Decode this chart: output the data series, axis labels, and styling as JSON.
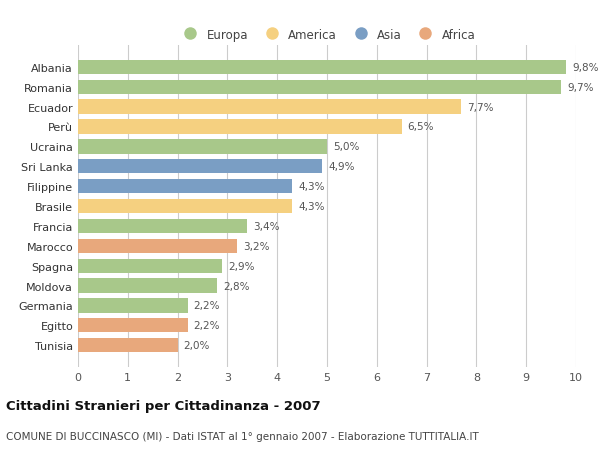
{
  "categories": [
    "Albania",
    "Romania",
    "Ecuador",
    "Perù",
    "Ucraina",
    "Sri Lanka",
    "Filippine",
    "Brasile",
    "Francia",
    "Marocco",
    "Spagna",
    "Moldova",
    "Germania",
    "Egitto",
    "Tunisia"
  ],
  "values": [
    9.8,
    9.7,
    7.7,
    6.5,
    5.0,
    4.9,
    4.3,
    4.3,
    3.4,
    3.2,
    2.9,
    2.8,
    2.2,
    2.2,
    2.0
  ],
  "labels": [
    "9,8%",
    "9,7%",
    "7,7%",
    "6,5%",
    "5,0%",
    "4,9%",
    "4,3%",
    "4,3%",
    "3,4%",
    "3,2%",
    "2,9%",
    "2,8%",
    "2,2%",
    "2,2%",
    "2,0%"
  ],
  "continents": [
    "Europa",
    "Europa",
    "America",
    "America",
    "Europa",
    "Asia",
    "Asia",
    "America",
    "Europa",
    "Africa",
    "Europa",
    "Europa",
    "Europa",
    "Africa",
    "Africa"
  ],
  "colors": {
    "Europa": "#a8c88a",
    "America": "#f5d080",
    "Asia": "#7a9ec4",
    "Africa": "#e8a87c"
  },
  "legend_order": [
    "Europa",
    "America",
    "Asia",
    "Africa"
  ],
  "xlim": [
    0,
    10
  ],
  "xticks": [
    0,
    1,
    2,
    3,
    4,
    5,
    6,
    7,
    8,
    9,
    10
  ],
  "title": "Cittadini Stranieri per Cittadinanza - 2007",
  "subtitle": "COMUNE DI BUCCINASCO (MI) - Dati ISTAT al 1° gennaio 2007 - Elaborazione TUTTITALIA.IT",
  "bg_color": "#ffffff",
  "grid_color": "#cccccc",
  "bar_height": 0.72,
  "label_fontsize": 7.5,
  "tick_fontsize": 8,
  "ylabel_fontsize": 8,
  "title_fontsize": 9.5,
  "subtitle_fontsize": 7.5
}
